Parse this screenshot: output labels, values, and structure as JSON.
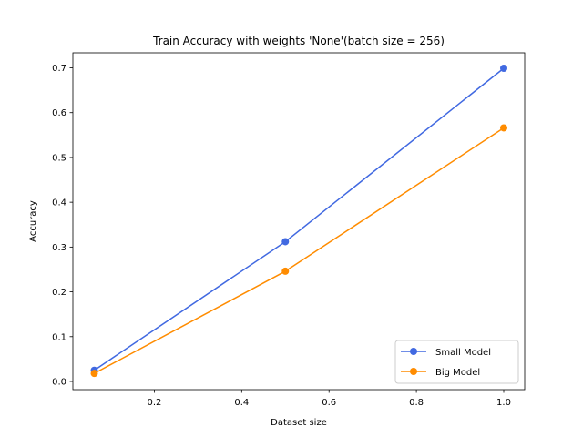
{
  "chart_data": {
    "type": "line",
    "title": "Train Accuracy with weights 'None'(batch size = 256)",
    "xlabel": "Dataset size",
    "ylabel": "Accuracy",
    "xlim": [
      0.0625,
      1.0
    ],
    "ylim": [
      0.0,
      0.7
    ],
    "xticks": [
      0.2,
      0.4,
      0.6,
      0.8,
      1.0
    ],
    "xtick_labels": [
      "0.2",
      "0.4",
      "0.6",
      "0.8",
      "1.0"
    ],
    "yticks": [
      0.0,
      0.1,
      0.2,
      0.3,
      0.4,
      0.5,
      0.6,
      0.7
    ],
    "ytick_labels": [
      "0.0",
      "0.1",
      "0.2",
      "0.3",
      "0.4",
      "0.5",
      "0.6",
      "0.7"
    ],
    "grid": false,
    "legend_position": "lower-right",
    "x": [
      0.0625,
      0.5,
      1.0
    ],
    "series": [
      {
        "name": "Small Model",
        "color": "#4169e1",
        "marker": "circle",
        "values": [
          0.025,
          0.312,
          0.699
        ]
      },
      {
        "name": "Big Model",
        "color": "#ff8c00",
        "marker": "circle",
        "values": [
          0.018,
          0.246,
          0.566
        ]
      }
    ]
  }
}
